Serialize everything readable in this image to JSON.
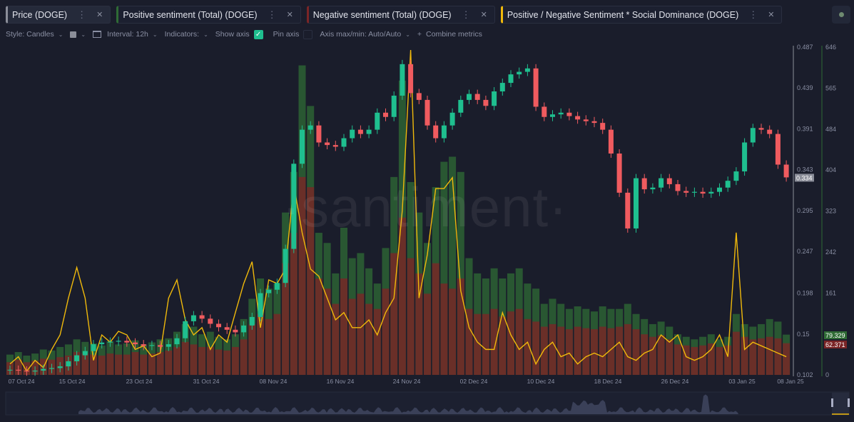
{
  "tabs": [
    {
      "label": "Price (DOGE)",
      "color": "#8b8e99",
      "active": true
    },
    {
      "label": "Positive sentiment (Total) (DOGE)",
      "color": "#2f6b35"
    },
    {
      "label": "Negative sentiment (Total) (DOGE)",
      "color": "#7a2526"
    },
    {
      "label": "Positive / Negative Sentiment * Social Dominance (DOGE)",
      "color": "#f0b90b"
    }
  ],
  "toolbar": {
    "style": "Style: Candles",
    "interval": "Interval: 12h",
    "indicators": "Indicators:",
    "show_axis": "Show axis",
    "show_axis_checked": true,
    "pin_axis": "Pin axis",
    "pin_axis_checked": false,
    "axis_maxmin": "Axis max/min: Auto/Auto",
    "combine": "Combine metrics"
  },
  "watermark": "·santiment·",
  "chart_data": {
    "type": "candlestick+bar+line",
    "x_start": "07 Oct 24",
    "x_end": "08 Jan 25",
    "x_tick_labels": [
      "07 Oct 24",
      "15 Oct 24",
      "23 Oct 24",
      "31 Oct 24",
      "08 Nov 24",
      "16 Nov 24",
      "24 Nov 24",
      "02 Dec 24",
      "10 Dec 24",
      "18 Dec 24",
      "26 Dec 24",
      "03 Jan 25",
      "08 Jan 25"
    ],
    "price_axis": {
      "ticks": [
        "0.487",
        "0.439",
        "0.391",
        "0.343",
        "0.295",
        "0.247",
        "0.198",
        "0.15",
        "0.102"
      ],
      "ylim": [
        0.102,
        0.487
      ],
      "last_value": "0.334"
    },
    "sentiment_axis": {
      "ticks": [
        "646",
        "565",
        "484",
        "404",
        "323",
        "242",
        "161",
        "0"
      ],
      "ylim": [
        0,
        646
      ],
      "last_positive": "79.329",
      "last_negative": "62.371"
    },
    "colors": {
      "up": "#1fbf8f",
      "down": "#f05b5f",
      "positive": "#2f6b35",
      "negative": "#7a2526",
      "ratio": "#f0b90b"
    },
    "series": [
      {
        "name": "Price (DOGE)",
        "kind": "candles",
        "close": [
          0.108,
          0.107,
          0.106,
          0.107,
          0.109,
          0.11,
          0.112,
          0.118,
          0.125,
          0.13,
          0.138,
          0.14,
          0.141,
          0.142,
          0.14,
          0.138,
          0.136,
          0.137,
          0.135,
          0.138,
          0.145,
          0.165,
          0.172,
          0.168,
          0.162,
          0.158,
          0.155,
          0.152,
          0.16,
          0.17,
          0.198,
          0.202,
          0.21,
          0.25,
          0.35,
          0.39,
          0.395,
          0.375,
          0.372,
          0.37,
          0.38,
          0.39,
          0.385,
          0.39,
          0.41,
          0.405,
          0.43,
          0.467,
          0.433,
          0.425,
          0.395,
          0.38,
          0.395,
          0.41,
          0.425,
          0.432,
          0.425,
          0.418,
          0.435,
          0.445,
          0.455,
          0.458,
          0.462,
          0.417,
          0.405,
          0.408,
          0.41,
          0.406,
          0.402,
          0.4,
          0.398,
          0.39,
          0.362,
          0.316,
          0.274,
          0.333,
          0.32,
          0.322,
          0.333,
          0.326,
          0.318,
          0.316,
          0.317,
          0.315,
          0.317,
          0.322,
          0.33,
          0.341,
          0.375,
          0.392,
          0.39,
          0.385,
          0.349,
          0.334
        ]
      },
      {
        "name": "Positive sentiment (Total) (DOGE)",
        "kind": "bar",
        "values": [
          40,
          45,
          38,
          42,
          50,
          48,
          55,
          60,
          70,
          65,
          62,
          58,
          66,
          60,
          62,
          68,
          60,
          64,
          70,
          72,
          85,
          100,
          95,
          80,
          85,
          75,
          70,
          80,
          110,
          150,
          190,
          170,
          180,
          320,
          400,
          610,
          530,
          280,
          260,
          200,
          290,
          230,
          240,
          210,
          180,
          250,
          390,
          580,
          380,
          320,
          260,
          370,
          420,
          430,
          400,
          230,
          200,
          190,
          210,
          190,
          200,
          210,
          180,
          170,
          140,
          150,
          140,
          130,
          135,
          130,
          125,
          135,
          130,
          130,
          140,
          120,
          110,
          100,
          105,
          95,
          80,
          75,
          70,
          75,
          80,
          70,
          75,
          120,
          100,
          95,
          100,
          110,
          105,
          79.329
        ]
      },
      {
        "name": "Negative sentiment (Total) (DOGE)",
        "kind": "bar",
        "values": [
          25,
          30,
          25,
          28,
          32,
          30,
          35,
          38,
          45,
          42,
          40,
          38,
          42,
          40,
          40,
          45,
          40,
          42,
          45,
          48,
          55,
          65,
          60,
          55,
          55,
          50,
          48,
          55,
          70,
          100,
          120,
          110,
          120,
          220,
          280,
          390,
          370,
          190,
          170,
          140,
          190,
          150,
          160,
          140,
          130,
          170,
          240,
          310,
          230,
          200,
          160,
          220,
          180,
          170,
          190,
          130,
          120,
          120,
          130,
          115,
          125,
          130,
          110,
          105,
          95,
          100,
          95,
          90,
          95,
          92,
          90,
          95,
          92,
          95,
          100,
          90,
          80,
          75,
          78,
          70,
          60,
          58,
          55,
          58,
          62,
          55,
          58,
          85,
          75,
          70,
          72,
          75,
          72,
          62.371
        ]
      },
      {
        "name": "Positive / Negative Sentiment * Social Dominance (DOGE)",
        "kind": "line",
        "values": [
          21,
          35,
          7,
          28,
          14,
          49,
          77,
          148,
          207,
          148,
          28,
          77,
          63,
          84,
          77,
          49,
          56,
          35,
          42,
          148,
          183,
          106,
          77,
          91,
          49,
          77,
          63,
          120,
          176,
          218,
          91,
          183,
          176,
          204,
          366,
          274,
          204,
          190,
          148,
          106,
          120,
          91,
          91,
          106,
          77,
          120,
          148,
          317,
          626,
          148,
          232,
          359,
          359,
          380,
          162,
          91,
          63,
          49,
          49,
          120,
          77,
          49,
          63,
          21,
          49,
          63,
          35,
          42,
          21,
          35,
          42,
          35,
          49,
          63,
          35,
          28,
          42,
          49,
          77,
          63,
          77,
          35,
          28,
          35,
          49,
          77,
          35,
          274,
          49,
          63,
          56,
          49,
          42,
          35
        ]
      }
    ]
  }
}
